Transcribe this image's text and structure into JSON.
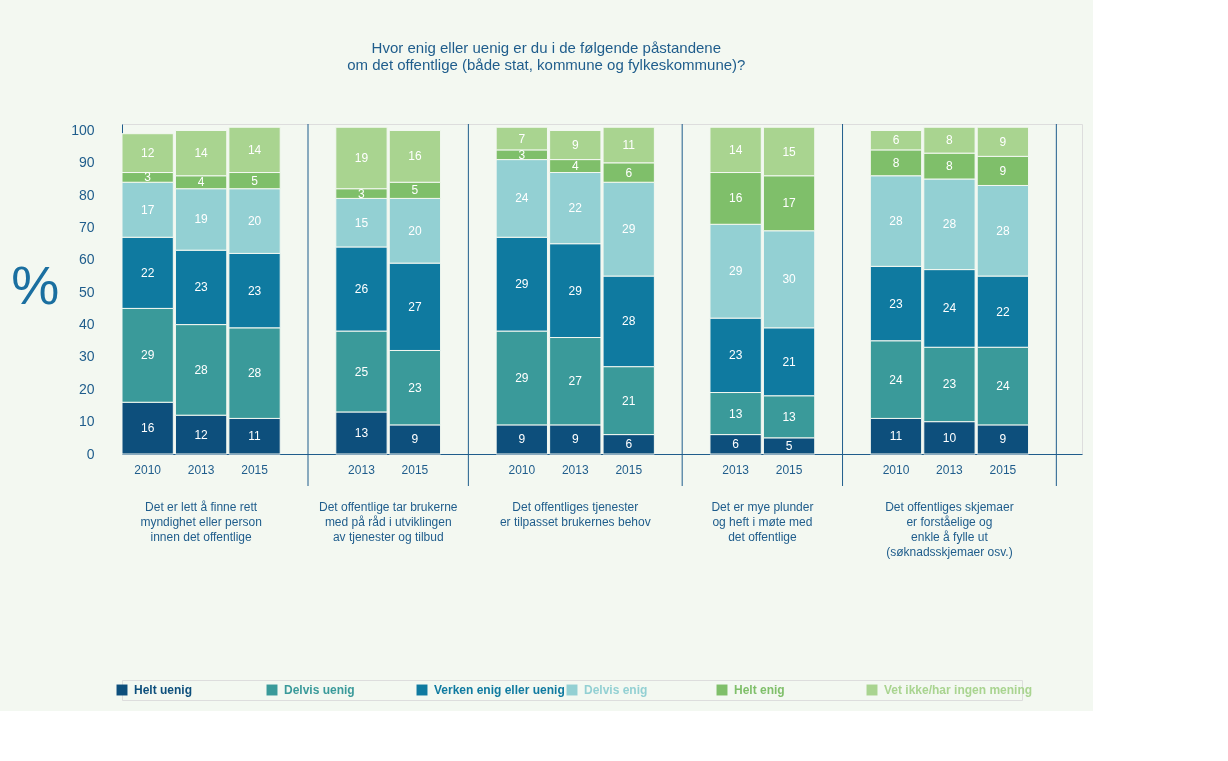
{
  "chart_data": {
    "type": "bar",
    "stacked": true,
    "data_labels": true,
    "grid": "x",
    "legend": "bottom",
    "title": "Hvor enig eller uenig er du i de følgende påstandene\nom det offentlige (både stat, kommune og fylkeskommune)?",
    "ylabel": "%",
    "annotations": [
      "Det er lett å finne rett\nmyndighet eller person\ninnen det offentlige",
      "Det offentlige tar brukerne\nmed på råd i utviklingen\nav tjenester og tilbud",
      "Det offentliges tjenester\ner tilpasset brukernes behov",
      "Det er mye plunder\nog heft i møte med\ndet offentlige",
      "Det offentliges skjemaer\ner forståelige og\nenkle å fylle ut\n(søknadsskjemaer osv.)"
    ],
    "categories": [
      "2010",
      "2013",
      "2015",
      null,
      "2013",
      "2015",
      null,
      "2010",
      "2013",
      "2015",
      null,
      "2013",
      "2015",
      null,
      "2010",
      "2013",
      "2015",
      null
    ],
    "ylim": [
      0,
      102
    ],
    "yticks": [
      0,
      10,
      20,
      30,
      40,
      50,
      60,
      70,
      80,
      90,
      100
    ],
    "series": [
      {
        "name": "Helt uenig",
        "color": "#0d4f7c",
        "values": [
          16,
          12,
          11,
          null,
          13,
          9,
          null,
          9,
          9,
          6,
          null,
          6,
          5,
          null,
          11,
          10,
          9,
          null
        ]
      },
      {
        "name": "Delvis uenig",
        "color": "#3a9a9a",
        "values": [
          29,
          28,
          28,
          null,
          25,
          23,
          null,
          29,
          27,
          21,
          null,
          13,
          13,
          null,
          24,
          23,
          24,
          null
        ]
      },
      {
        "name": "Verken enig eller uenig",
        "color": "#0f7aa0",
        "values": [
          22,
          23,
          23,
          null,
          26,
          27,
          null,
          29,
          29,
          28,
          null,
          23,
          21,
          null,
          23,
          24,
          22,
          null
        ]
      },
      {
        "name": "Delvis enig",
        "color": "#93d0d3",
        "values": [
          17,
          19,
          20,
          null,
          15,
          20,
          null,
          24,
          22,
          29,
          null,
          29,
          30,
          null,
          28,
          28,
          28,
          null
        ]
      },
      {
        "name": "Helt enig",
        "color": "#7fbf6a",
        "values": [
          3,
          4,
          5,
          null,
          3,
          5,
          null,
          3,
          4,
          6,
          null,
          16,
          17,
          null,
          8,
          8,
          9,
          null
        ]
      },
      {
        "name": "Vet ikke/har ingen mening",
        "color": "#a9d490",
        "values": [
          12,
          14,
          14,
          null,
          19,
          16,
          null,
          7,
          9,
          11,
          null,
          14,
          15,
          null,
          6,
          8,
          9,
          null
        ]
      }
    ]
  }
}
